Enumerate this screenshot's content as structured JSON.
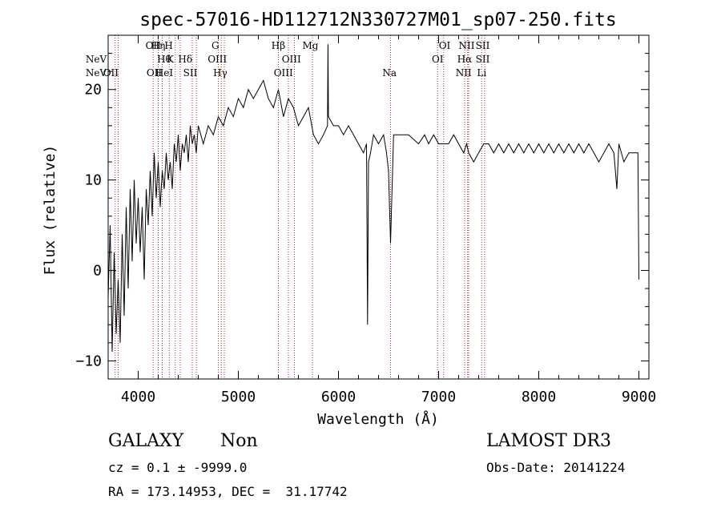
{
  "chart_data": {
    "type": "line",
    "title": "spec-57016-HD112712N330727M01_sp07-250.fits",
    "xlabel": "Wavelength (Å)",
    "ylabel": "Flux (relative)",
    "xlim": [
      3700,
      9100
    ],
    "ylim": [
      -12,
      26
    ],
    "xticks": [
      4000,
      5000,
      6000,
      7000,
      8000,
      9000
    ],
    "yticks": [
      -10,
      0,
      10,
      20
    ],
    "grid": false,
    "line_color": "#000000",
    "marker_color": "#a0302a",
    "series": [
      {
        "x": [
          3700,
          3720,
          3740,
          3760,
          3780,
          3800,
          3820,
          3840,
          3860,
          3880,
          3900,
          3920,
          3940,
          3960,
          3980,
          4000,
          4020,
          4040,
          4060,
          4080,
          4100,
          4120,
          4140,
          4160,
          4180,
          4200,
          4220,
          4240,
          4260,
          4280,
          4300,
          4320,
          4340,
          4360,
          4380,
          4400,
          4420,
          4440,
          4460,
          4480,
          4500,
          4520,
          4540,
          4560,
          4580,
          4600,
          4650,
          4700,
          4750,
          4800,
          4850,
          4900,
          4950,
          5000,
          5050,
          5100,
          5150,
          5200,
          5250,
          5300,
          5350,
          5400,
          5450,
          5500,
          5550,
          5600,
          5650,
          5700,
          5750,
          5800,
          5850,
          5890,
          5895,
          5900,
          5950,
          6000,
          6050,
          6100,
          6150,
          6200,
          6250,
          6280,
          6290,
          6300,
          6320,
          6350,
          6400,
          6450,
          6480,
          6500,
          6520,
          6550,
          6600,
          6700,
          6800,
          6860,
          6900,
          6950,
          7000,
          7050,
          7100,
          7150,
          7200,
          7250,
          7280,
          7300,
          7350,
          7400,
          7450,
          7500,
          7550,
          7600,
          7650,
          7700,
          7750,
          7800,
          7850,
          7900,
          7950,
          8000,
          8050,
          8100,
          8150,
          8200,
          8250,
          8300,
          8350,
          8400,
          8450,
          8500,
          8550,
          8600,
          8650,
          8700,
          8750,
          8780,
          8800,
          8850,
          8900,
          8950,
          8990,
          9000
        ],
        "y": [
          -3,
          5,
          -9,
          2,
          -7,
          -1,
          -8,
          4,
          -5,
          7,
          -2,
          9,
          1,
          10,
          3,
          8,
          2,
          7,
          -1,
          9,
          5,
          11,
          6,
          13,
          8,
          12,
          7,
          11,
          9,
          13,
          10,
          12,
          9,
          14,
          12,
          15,
          11,
          14,
          13,
          15,
          12,
          16,
          14,
          15,
          13,
          16,
          14,
          16,
          15,
          17,
          16,
          18,
          17,
          19,
          18,
          20,
          19,
          20,
          21,
          19,
          18,
          20,
          17,
          19,
          18,
          16,
          17,
          18,
          15,
          14,
          15,
          16,
          25,
          17,
          16,
          16,
          15,
          16,
          15,
          14,
          13,
          14,
          -6,
          12,
          13,
          15,
          14,
          15,
          13,
          11,
          3,
          15,
          15,
          15,
          14,
          15,
          14,
          15,
          14,
          14,
          14,
          15,
          14,
          13,
          14,
          13,
          12,
          13,
          14,
          14,
          13,
          14,
          13,
          14,
          13,
          14,
          13,
          14,
          13,
          14,
          13,
          14,
          13,
          14,
          13,
          14,
          13,
          14,
          13,
          14,
          13,
          12,
          13,
          14,
          13,
          9,
          14,
          12,
          13,
          13,
          13,
          -1
        ]
      }
    ],
    "spectral_lines": [
      {
        "label": "NeV",
        "wavelength": 3346,
        "row": 2
      },
      {
        "label": "NeV",
        "wavelength": 3426,
        "row": 3
      },
      {
        "label": "OII",
        "wavelength": 3727,
        "row": 3
      },
      {
        "label": "OII",
        "wavelength": 4150,
        "row": 1
      },
      {
        "label": "Hη",
        "wavelength": 4200,
        "row": 1
      },
      {
        "label": "H",
        "wavelength": 4305,
        "row": 1
      },
      {
        "label": "Hθ",
        "wavelength": 4260,
        "row": 2
      },
      {
        "label": "K",
        "wavelength": 4320,
        "row": 2
      },
      {
        "label": "OII",
        "wavelength": 4160,
        "row": 3
      },
      {
        "label": "HeI",
        "wavelength": 4260,
        "row": 3
      },
      {
        "label": "Hδ",
        "wavelength": 4470,
        "row": 2
      },
      {
        "label": "SII",
        "wavelength": 4520,
        "row": 3
      },
      {
        "label": "G",
        "wavelength": 4770,
        "row": 1
      },
      {
        "label": "OIII",
        "wavelength": 4790,
        "row": 2
      },
      {
        "label": "Hγ",
        "wavelength": 4820,
        "row": 3
      },
      {
        "label": "Hβ",
        "wavelength": 5400,
        "row": 1
      },
      {
        "label": "OIII",
        "wavelength": 5530,
        "row": 2
      },
      {
        "label": "OIII",
        "wavelength": 5450,
        "row": 3
      },
      {
        "label": "Mg",
        "wavelength": 5720,
        "row": 1
      },
      {
        "label": "Na",
        "wavelength": 6510,
        "row": 3
      },
      {
        "label": "OI",
        "wavelength": 7060,
        "row": 1
      },
      {
        "label": "OI",
        "wavelength": 6990,
        "row": 2
      },
      {
        "label": "NII",
        "wavelength": 7280,
        "row": 1
      },
      {
        "label": "SII",
        "wavelength": 7440,
        "row": 1
      },
      {
        "label": "Hα",
        "wavelength": 7260,
        "row": 2
      },
      {
        "label": "SII",
        "wavelength": 7440,
        "row": 2
      },
      {
        "label": "NII",
        "wavelength": 7250,
        "row": 3
      },
      {
        "label": "Li",
        "wavelength": 7430,
        "row": 3
      }
    ],
    "marker_wavelengths": [
      3770,
      3800,
      4150,
      4200,
      4240,
      4310,
      4370,
      4420,
      4540,
      4580,
      4800,
      4830,
      4860,
      5400,
      5500,
      5560,
      5740,
      6520,
      6990,
      7050,
      7260,
      7290,
      7300,
      7430,
      7460
    ]
  },
  "info": {
    "class": "GALAXY",
    "subclass": "Non",
    "survey": "LAMOST DR3",
    "cz": "cz = 0.1 ± -9999.0",
    "obs_date": "Obs-Date: 20141224",
    "radec": "RA = 173.14953, DEC =  31.17742"
  }
}
